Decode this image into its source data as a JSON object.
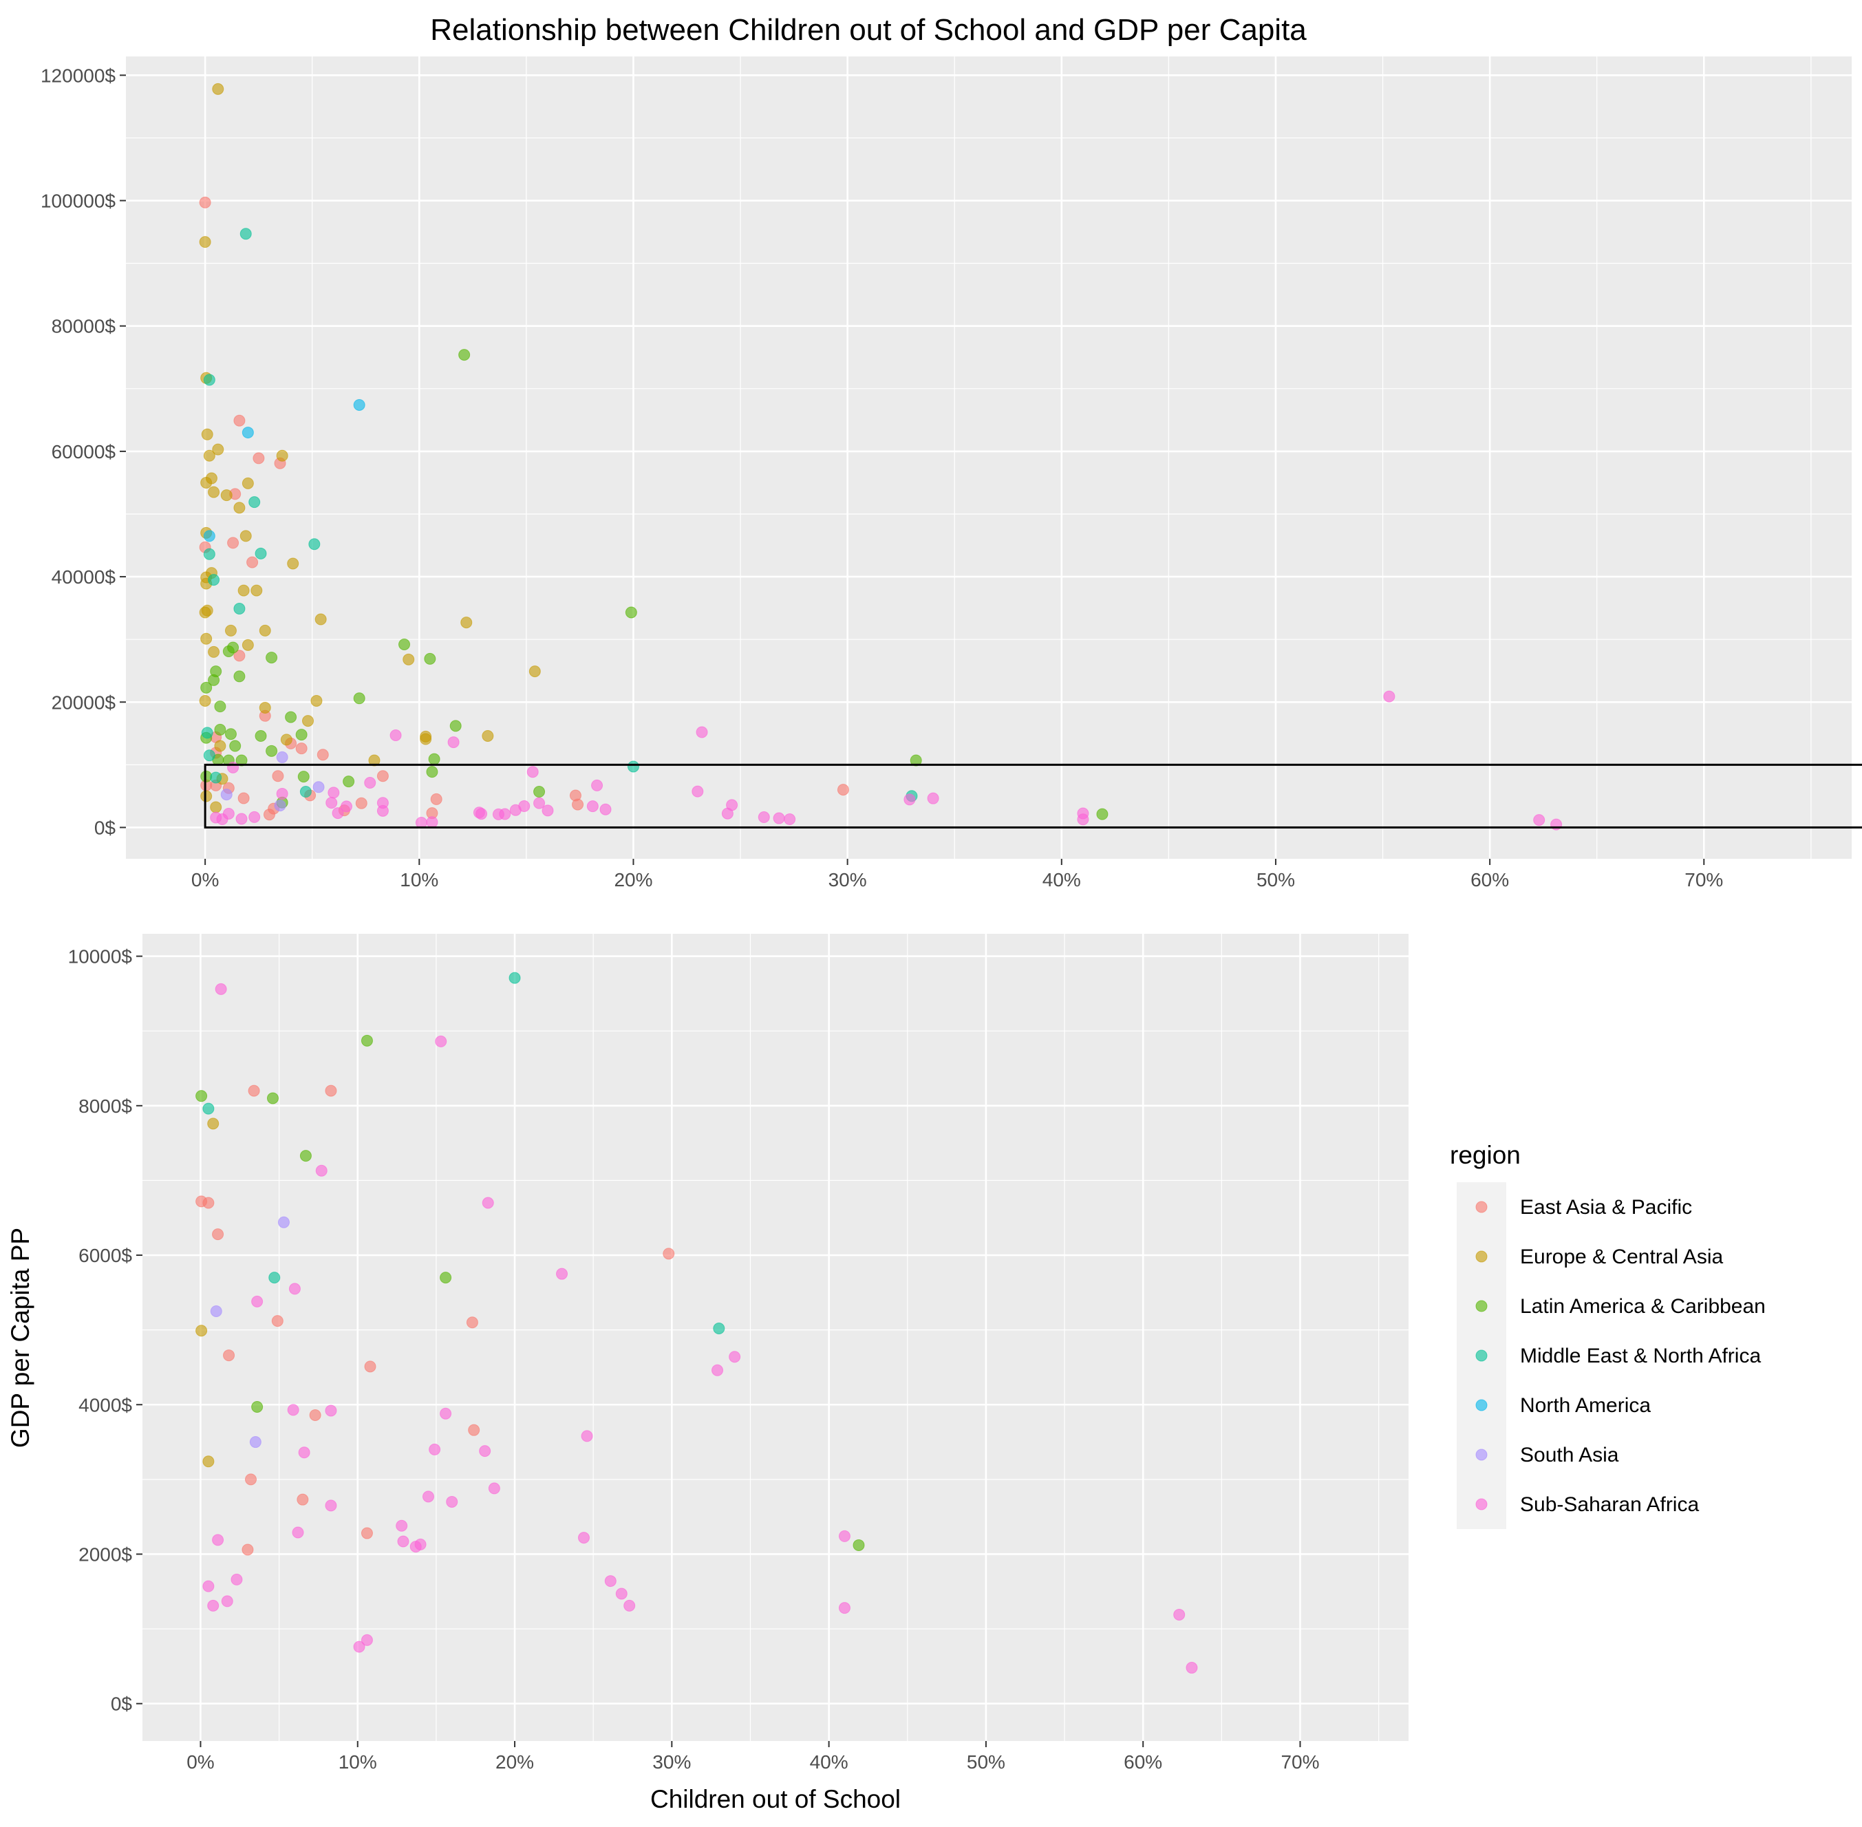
{
  "chart_data": {
    "type": "scatter",
    "title": "Relationship between Children out of School and GDP per Capita",
    "xlabel": "Children out of School",
    "ylabel": "GDP per Capita PP",
    "legend_title": "region",
    "legend_position": "right",
    "grid": true,
    "x_ticks": [
      "0%",
      "10%",
      "20%",
      "30%",
      "40%",
      "50%",
      "60%",
      "70%"
    ],
    "colors": {
      "East Asia & Pacific": "#F8766D",
      "Europe & Central Asia": "#C49A00",
      "Latin America & Caribbean": "#53B400",
      "Middle East & North Africa": "#00C094",
      "North America": "#00B6EB",
      "South Asia": "#A58AFF",
      "Sub-Saharan Africa": "#FB61D7"
    },
    "panels": [
      {
        "name": "full-range",
        "xlim": [
          -3.7,
          76.9
        ],
        "ylim": [
          -5000,
          123000
        ],
        "y_ticks": [
          0,
          20000,
          40000,
          60000,
          80000,
          100000,
          120000
        ],
        "y_tick_labels": [
          "0$",
          "20000$",
          "40000$",
          "60000$",
          "80000$",
          "100000$",
          "120000$"
        ],
        "zoom_box": {
          "x": [
            0,
            80
          ],
          "y": [
            0,
            10000
          ]
        }
      },
      {
        "name": "zoomed",
        "xlim": [
          -3.7,
          76.9
        ],
        "ylim": [
          -500,
          10300
        ],
        "y_ticks": [
          0,
          2000,
          4000,
          6000,
          8000,
          10000
        ],
        "y_tick_labels": [
          "0$",
          "2000$",
          "4000$",
          "6000$",
          "8000$",
          "10000$"
        ]
      }
    ],
    "series": [
      {
        "name": "East Asia & Pacific",
        "points": [
          [
            0,
            99700
          ],
          [
            1.6,
            64900
          ],
          [
            2.5,
            58900
          ],
          [
            3.5,
            58100
          ],
          [
            1.4,
            53200
          ],
          [
            1.3,
            45400
          ],
          [
            0,
            44700
          ],
          [
            2.2,
            42300
          ],
          [
            1.6,
            27400
          ],
          [
            0.5,
            14400
          ],
          [
            4.0,
            13400
          ],
          [
            0.5,
            11900
          ],
          [
            5.5,
            11600
          ],
          [
            2.8,
            17800
          ],
          [
            4.5,
            12600
          ],
          [
            0.05,
            6720
          ],
          [
            0.5,
            6700
          ],
          [
            1.1,
            6280
          ],
          [
            1.8,
            4660
          ],
          [
            3.4,
            8200
          ],
          [
            8.3,
            8200
          ],
          [
            4.9,
            5120
          ],
          [
            3.2,
            3000
          ],
          [
            6.5,
            2730
          ],
          [
            3.0,
            2060
          ],
          [
            7.3,
            3860
          ],
          [
            10.8,
            4510
          ],
          [
            17.3,
            5100
          ],
          [
            17.4,
            3660
          ],
          [
            29.8,
            6020
          ],
          [
            10.6,
            2280
          ]
        ]
      },
      {
        "name": "Europe & Central Asia",
        "points": [
          [
            0.6,
            117800
          ],
          [
            0,
            93400
          ],
          [
            0.05,
            71700
          ],
          [
            0.1,
            62700
          ],
          [
            0.2,
            59300
          ],
          [
            0.6,
            60300
          ],
          [
            3.6,
            59300
          ],
          [
            0.3,
            55700
          ],
          [
            0.05,
            55000
          ],
          [
            0.4,
            53500
          ],
          [
            1.0,
            53000
          ],
          [
            2.0,
            54900
          ],
          [
            1.6,
            51000
          ],
          [
            0.05,
            47000
          ],
          [
            1.9,
            46500
          ],
          [
            4.1,
            42100
          ],
          [
            0.05,
            39900
          ],
          [
            0.05,
            38900
          ],
          [
            0.3,
            40600
          ],
          [
            1.8,
            37800
          ],
          [
            2.4,
            37800
          ],
          [
            0.1,
            34600
          ],
          [
            0,
            34300
          ],
          [
            1.2,
            31400
          ],
          [
            2.8,
            31400
          ],
          [
            5.4,
            33200
          ],
          [
            12.2,
            32700
          ],
          [
            0.05,
            30100
          ],
          [
            0.4,
            28000
          ],
          [
            2.0,
            29100
          ],
          [
            9.5,
            26800
          ],
          [
            15.4,
            24900
          ],
          [
            0,
            20200
          ],
          [
            2.8,
            19100
          ],
          [
            5.2,
            20200
          ],
          [
            4.8,
            17000
          ],
          [
            3.8,
            14000
          ],
          [
            10.3,
            14500
          ],
          [
            13.2,
            14600
          ],
          [
            0.7,
            13000
          ],
          [
            7.9,
            10700
          ],
          [
            10.3,
            14100
          ],
          [
            0.05,
            4990
          ],
          [
            0.5,
            3240
          ],
          [
            0.8,
            7760
          ]
        ]
      },
      {
        "name": "Latin America & Caribbean",
        "points": [
          [
            12.1,
            75400
          ],
          [
            19.9,
            34300
          ],
          [
            9.3,
            29200
          ],
          [
            10.5,
            26900
          ],
          [
            3.1,
            27100
          ],
          [
            0.4,
            23500
          ],
          [
            0.05,
            22300
          ],
          [
            0.5,
            24900
          ],
          [
            1.1,
            28100
          ],
          [
            1.3,
            28700
          ],
          [
            1.6,
            24100
          ],
          [
            7.2,
            20600
          ],
          [
            0.7,
            19300
          ],
          [
            4.0,
            17600
          ],
          [
            11.7,
            16200
          ],
          [
            0.7,
            15600
          ],
          [
            1.2,
            14900
          ],
          [
            2.6,
            14600
          ],
          [
            4.5,
            14800
          ],
          [
            0.05,
            14300
          ],
          [
            1.4,
            13000
          ],
          [
            3.1,
            12200
          ],
          [
            10.7,
            10900
          ],
          [
            33.2,
            10700
          ],
          [
            0.6,
            10800
          ],
          [
            1.1,
            10700
          ],
          [
            1.7,
            10700
          ],
          [
            0.05,
            8130
          ],
          [
            10.6,
            8870
          ],
          [
            4.6,
            8100
          ],
          [
            6.7,
            7330
          ],
          [
            3.6,
            3970
          ],
          [
            15.6,
            5700
          ],
          [
            41.9,
            2120
          ]
        ]
      },
      {
        "name": "Middle East & North Africa",
        "points": [
          [
            1.9,
            94700
          ],
          [
            0.2,
            71400
          ],
          [
            2.3,
            51900
          ],
          [
            5.1,
            45200
          ],
          [
            0.2,
            43600
          ],
          [
            2.6,
            43700
          ],
          [
            0.4,
            39500
          ],
          [
            1.6,
            34900
          ],
          [
            0.1,
            15100
          ],
          [
            0.2,
            11500
          ],
          [
            20.0,
            9710
          ],
          [
            0.5,
            7960
          ],
          [
            4.7,
            5700
          ],
          [
            33.0,
            5020
          ]
        ]
      },
      {
        "name": "North America",
        "points": [
          [
            7.2,
            67400
          ],
          [
            2.0,
            63000
          ],
          [
            0.2,
            46500
          ]
        ]
      },
      {
        "name": "South Asia",
        "points": [
          [
            3.6,
            11200
          ],
          [
            1.0,
            5250
          ],
          [
            5.3,
            6440
          ],
          [
            3.5,
            3500
          ]
        ]
      },
      {
        "name": "Sub-Saharan Africa",
        "points": [
          [
            55.3,
            20900
          ],
          [
            23.2,
            15200
          ],
          [
            8.9,
            14700
          ],
          [
            11.6,
            13600
          ],
          [
            1.3,
            9560
          ],
          [
            15.3,
            8860
          ],
          [
            7.7,
            7130
          ],
          [
            18.3,
            6700
          ],
          [
            23.0,
            5750
          ],
          [
            6.0,
            5550
          ],
          [
            3.6,
            5380
          ],
          [
            34.0,
            4640
          ],
          [
            32.9,
            4460
          ],
          [
            5.9,
            3930
          ],
          [
            8.3,
            3920
          ],
          [
            15.6,
            3880
          ],
          [
            24.6,
            3580
          ],
          [
            6.6,
            3360
          ],
          [
            14.9,
            3400
          ],
          [
            18.1,
            3380
          ],
          [
            18.7,
            2880
          ],
          [
            14.5,
            2770
          ],
          [
            16.0,
            2700
          ],
          [
            8.3,
            2650
          ],
          [
            6.2,
            2290
          ],
          [
            24.4,
            2220
          ],
          [
            41.0,
            2240
          ],
          [
            12.8,
            2380
          ],
          [
            12.9,
            2170
          ],
          [
            13.7,
            2100
          ],
          [
            14.0,
            2130
          ],
          [
            1.1,
            2190
          ],
          [
            2.3,
            1660
          ],
          [
            0.5,
            1570
          ],
          [
            1.7,
            1370
          ],
          [
            0.8,
            1310
          ],
          [
            26.1,
            1640
          ],
          [
            26.8,
            1470
          ],
          [
            27.3,
            1310
          ],
          [
            41.0,
            1280
          ],
          [
            62.3,
            1190
          ],
          [
            63.1,
            480
          ],
          [
            10.1,
            760
          ],
          [
            10.6,
            850
          ]
        ]
      }
    ]
  }
}
